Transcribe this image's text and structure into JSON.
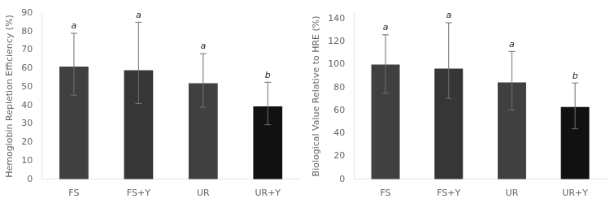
{
  "chart_data": [
    {
      "type": "bar",
      "ylabel": "Hemoglobin Repletion Efficiency (%)",
      "categories": [
        "FS",
        "FS+Y",
        "UR",
        "UR+Y"
      ],
      "values": [
        61.0,
        59.0,
        52.0,
        39.5
      ],
      "errors_upper": [
        18.0,
        26.0,
        16.0,
        13.0
      ],
      "errors_lower": [
        15.5,
        18.0,
        13.0,
        10.0
      ],
      "annotations": [
        "a",
        "a",
        "a",
        "b"
      ],
      "colors": [
        "#404040",
        "#363636",
        "#404040",
        "#111111"
      ],
      "ylim": [
        0,
        90
      ],
      "yticks": [
        0,
        10,
        20,
        30,
        40,
        50,
        60,
        70,
        80,
        90
      ],
      "grid": false
    },
    {
      "type": "bar",
      "ylabel": "Biological Value Relative to HRE (%)",
      "categories": [
        "FS",
        "FS+Y",
        "UR",
        "UR+Y"
      ],
      "values": [
        100.0,
        96.5,
        84.5,
        63.0
      ],
      "errors_upper": [
        26.0,
        40.0,
        27.0,
        21.0
      ],
      "errors_lower": [
        25.0,
        26.0,
        24.0,
        19.0
      ],
      "annotations": [
        "a",
        "a",
        "a",
        "b"
      ],
      "colors": [
        "#404040",
        "#363636",
        "#404040",
        "#111111"
      ],
      "ylim": [
        0,
        145
      ],
      "yticks": [
        0,
        20,
        40,
        60,
        80,
        100,
        120,
        140
      ],
      "grid": false
    }
  ]
}
